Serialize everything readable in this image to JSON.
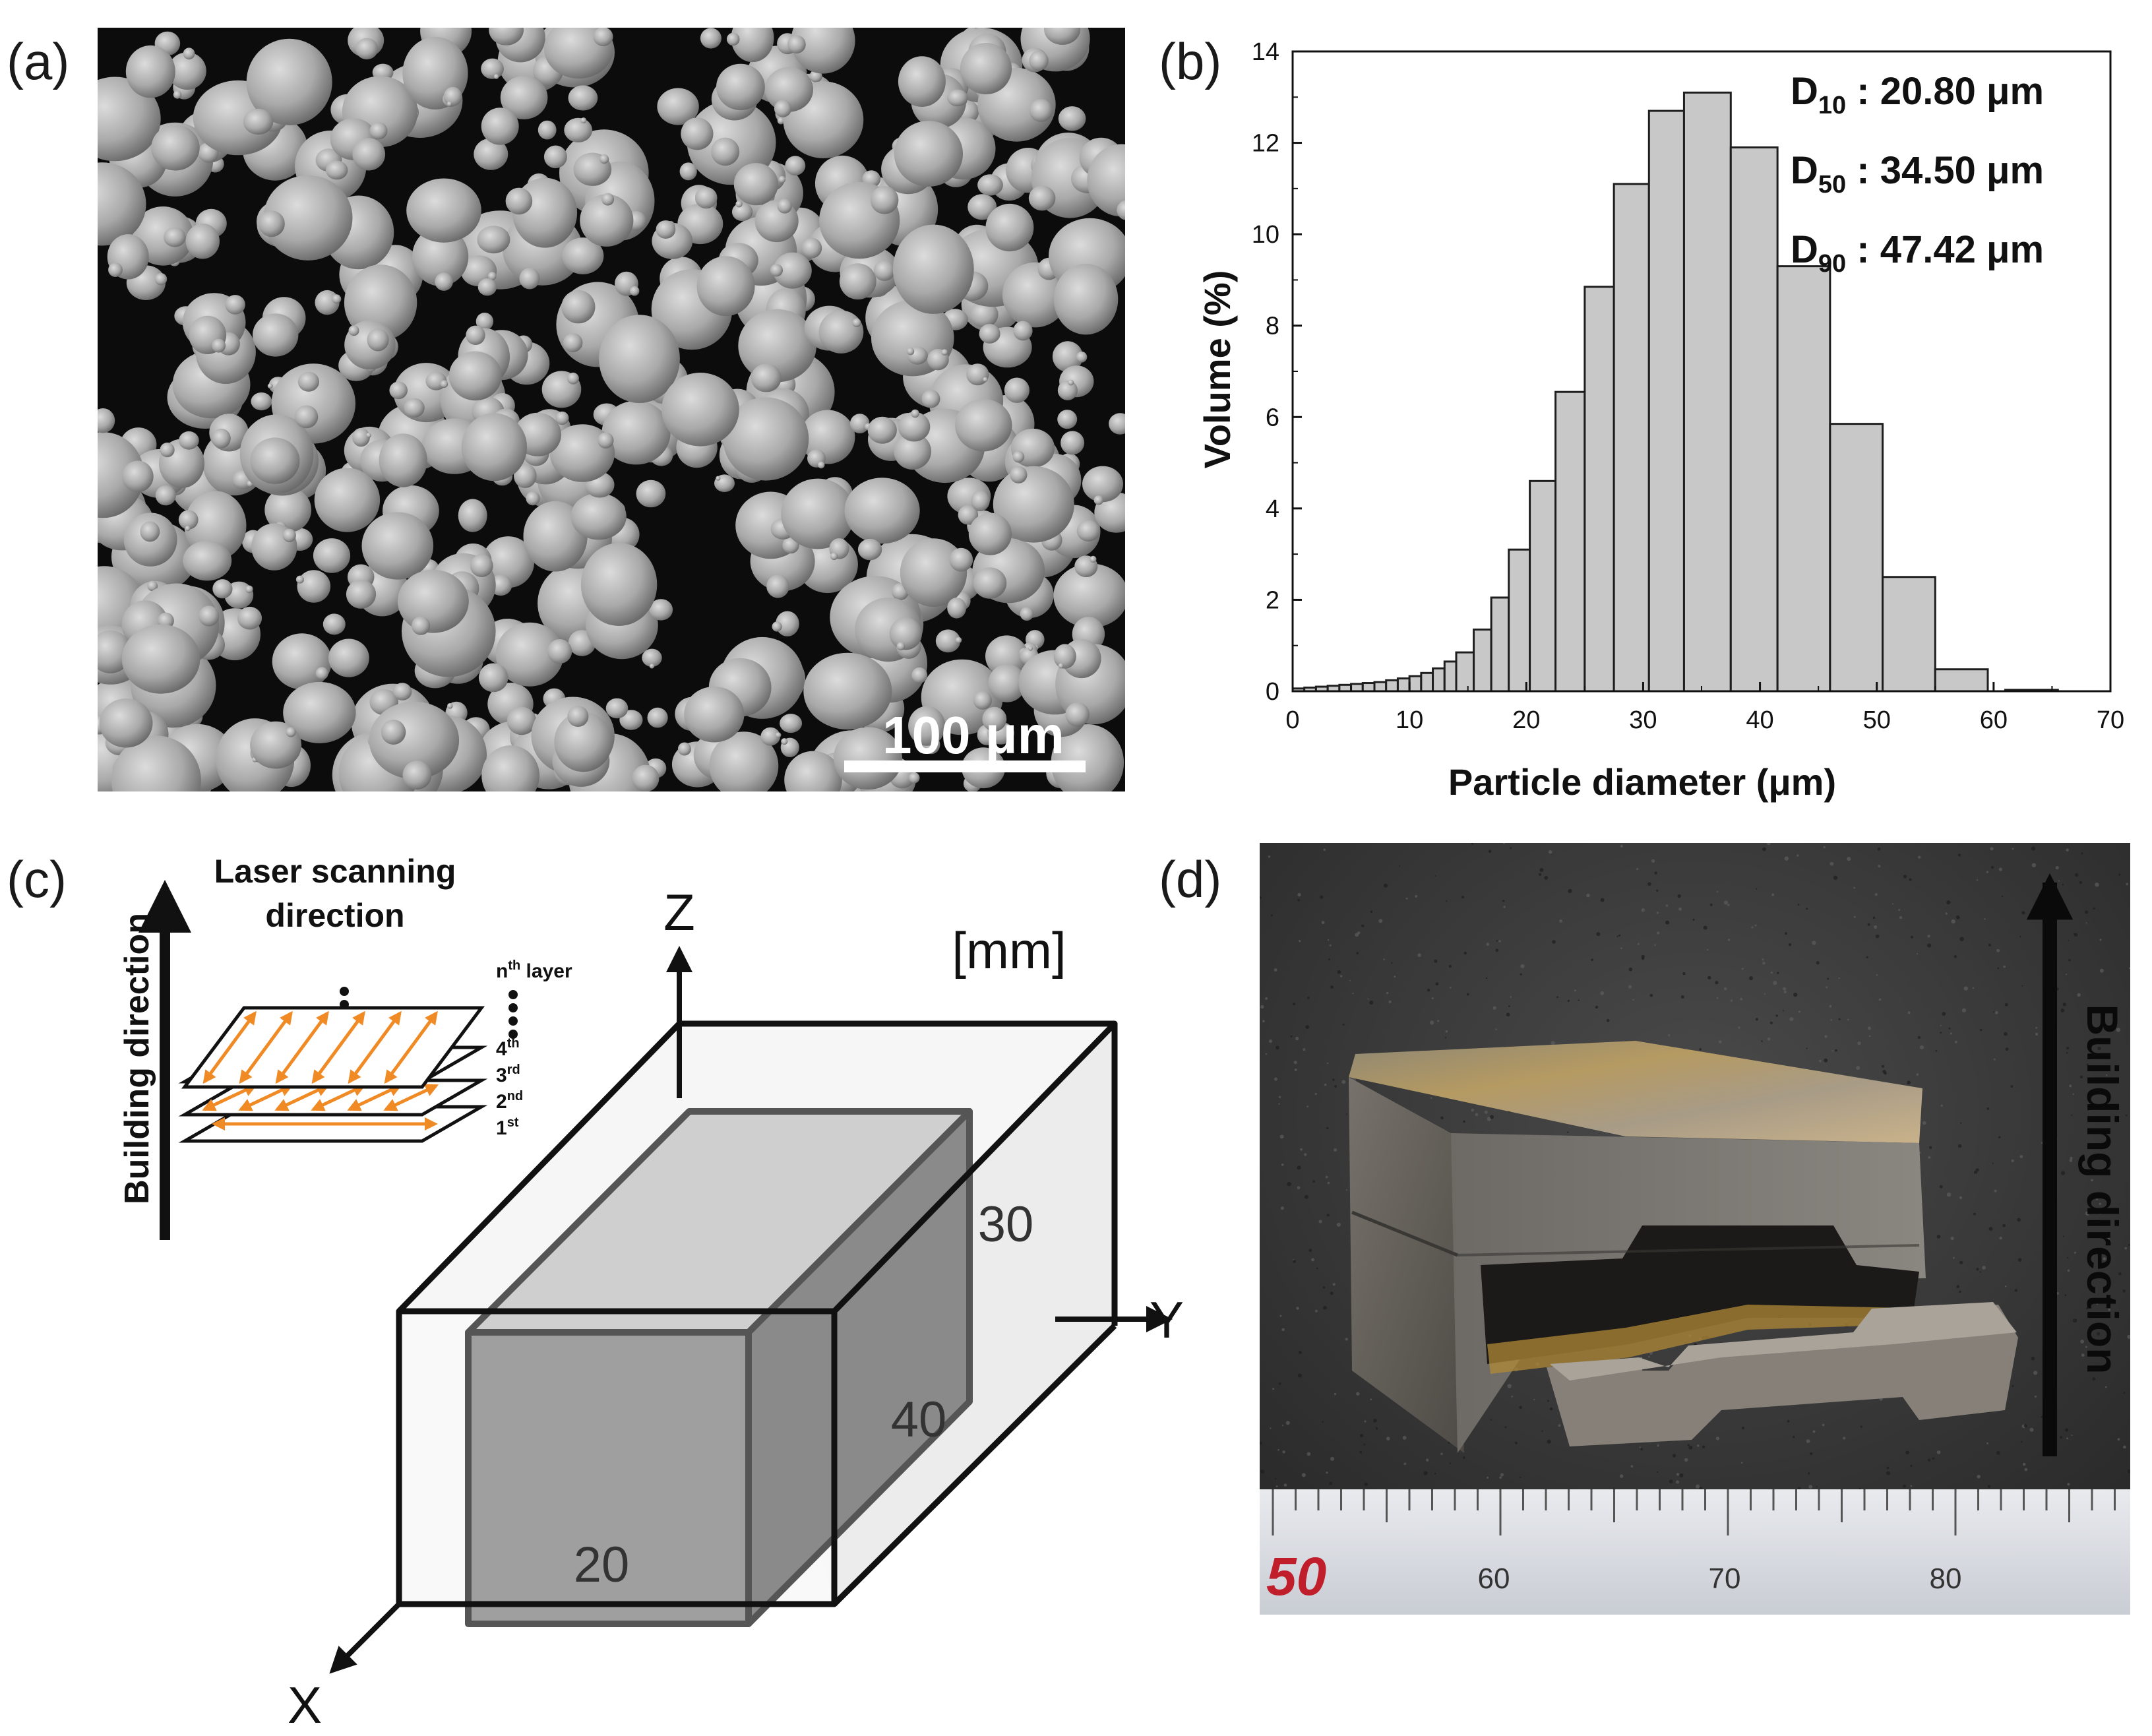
{
  "panels": {
    "a": {
      "label": "(a)",
      "scale_bar_text": "100 μm"
    },
    "b": {
      "label": "(b)",
      "annotations": [
        {
          "sym": "D",
          "sub": "10",
          "value": " : 20.80 μm"
        },
        {
          "sym": "D",
          "sub": "50",
          "value": " : 34.50 μm"
        },
        {
          "sym": "D",
          "sub": "90",
          "value": " : 47.42 μm"
        }
      ]
    },
    "c": {
      "label": "(c)",
      "legend_title_line1": "Laser scanning",
      "legend_title_line2": "direction",
      "building_direction": "Building direction",
      "layer_labels": [
        {
          "base": "n",
          "sup": "th",
          "rest": " layer"
        },
        {
          "base": "4",
          "sup": "th",
          "rest": ""
        },
        {
          "base": "3",
          "sup": "rd",
          "rest": ""
        },
        {
          "base": "2",
          "sup": "nd",
          "rest": ""
        },
        {
          "base": "1",
          "sup": "st",
          "rest": ""
        }
      ],
      "axis_z": "Z",
      "axis_y": "Y",
      "axis_x": "X",
      "unit": "[mm]",
      "dim_height": "30",
      "dim_length": "40",
      "dim_width": "20",
      "colors": {
        "scan_arrow": "#f08a24",
        "box_front": "#9f9f9f",
        "box_top": "#cfcfcf",
        "box_side": "#8a8a8a"
      }
    },
    "d": {
      "label": "(d)",
      "building_direction": "Building direction",
      "ruler_labels": [
        "50",
        "60",
        "70",
        "80"
      ]
    }
  },
  "chart_data": {
    "type": "bar",
    "xlabel": "Particle diameter (μm)",
    "ylabel": "Volume (%)",
    "xlim": [
      0,
      70
    ],
    "ylim": [
      0,
      14
    ],
    "xticks": [
      0,
      10,
      20,
      30,
      40,
      50,
      60,
      70
    ],
    "yticks": [
      0,
      2,
      4,
      6,
      8,
      10,
      12,
      14
    ],
    "bar_color": "#c8c8c8",
    "bins": [
      {
        "x0": 0.0,
        "x1": 1.0,
        "value": 0.06
      },
      {
        "x0": 1.0,
        "x1": 2.0,
        "value": 0.08
      },
      {
        "x0": 2.0,
        "x1": 3.0,
        "value": 0.1
      },
      {
        "x0": 3.0,
        "x1": 4.0,
        "value": 0.12
      },
      {
        "x0": 4.0,
        "x1": 5.0,
        "value": 0.14
      },
      {
        "x0": 5.0,
        "x1": 6.0,
        "value": 0.16
      },
      {
        "x0": 6.0,
        "x1": 7.0,
        "value": 0.18
      },
      {
        "x0": 7.0,
        "x1": 8.0,
        "value": 0.2
      },
      {
        "x0": 8.0,
        "x1": 9.0,
        "value": 0.24
      },
      {
        "x0": 9.0,
        "x1": 10.0,
        "value": 0.28
      },
      {
        "x0": 10.0,
        "x1": 11.0,
        "value": 0.33
      },
      {
        "x0": 11.0,
        "x1": 12.0,
        "value": 0.4
      },
      {
        "x0": 12.0,
        "x1": 13.0,
        "value": 0.5
      },
      {
        "x0": 13.0,
        "x1": 14.0,
        "value": 0.65
      },
      {
        "x0": 14.0,
        "x1": 15.5,
        "value": 0.85
      },
      {
        "x0": 15.5,
        "x1": 17.0,
        "value": 1.35
      },
      {
        "x0": 17.0,
        "x1": 18.5,
        "value": 2.05
      },
      {
        "x0": 18.5,
        "x1": 20.3,
        "value": 3.1
      },
      {
        "x0": 20.3,
        "x1": 22.5,
        "value": 4.6
      },
      {
        "x0": 22.5,
        "x1": 25.0,
        "value": 6.55
      },
      {
        "x0": 25.0,
        "x1": 27.5,
        "value": 8.85
      },
      {
        "x0": 27.5,
        "x1": 30.5,
        "value": 11.1
      },
      {
        "x0": 30.5,
        "x1": 33.5,
        "value": 12.7
      },
      {
        "x0": 33.5,
        "x1": 37.5,
        "value": 13.1
      },
      {
        "x0": 37.5,
        "x1": 41.5,
        "value": 11.9
      },
      {
        "x0": 41.5,
        "x1": 46.0,
        "value": 9.3
      },
      {
        "x0": 46.0,
        "x1": 50.5,
        "value": 5.85
      },
      {
        "x0": 50.5,
        "x1": 55.0,
        "value": 2.5
      },
      {
        "x0": 55.0,
        "x1": 59.5,
        "value": 0.48
      },
      {
        "x0": 61.0,
        "x1": 65.5,
        "value": 0.03
      }
    ]
  }
}
